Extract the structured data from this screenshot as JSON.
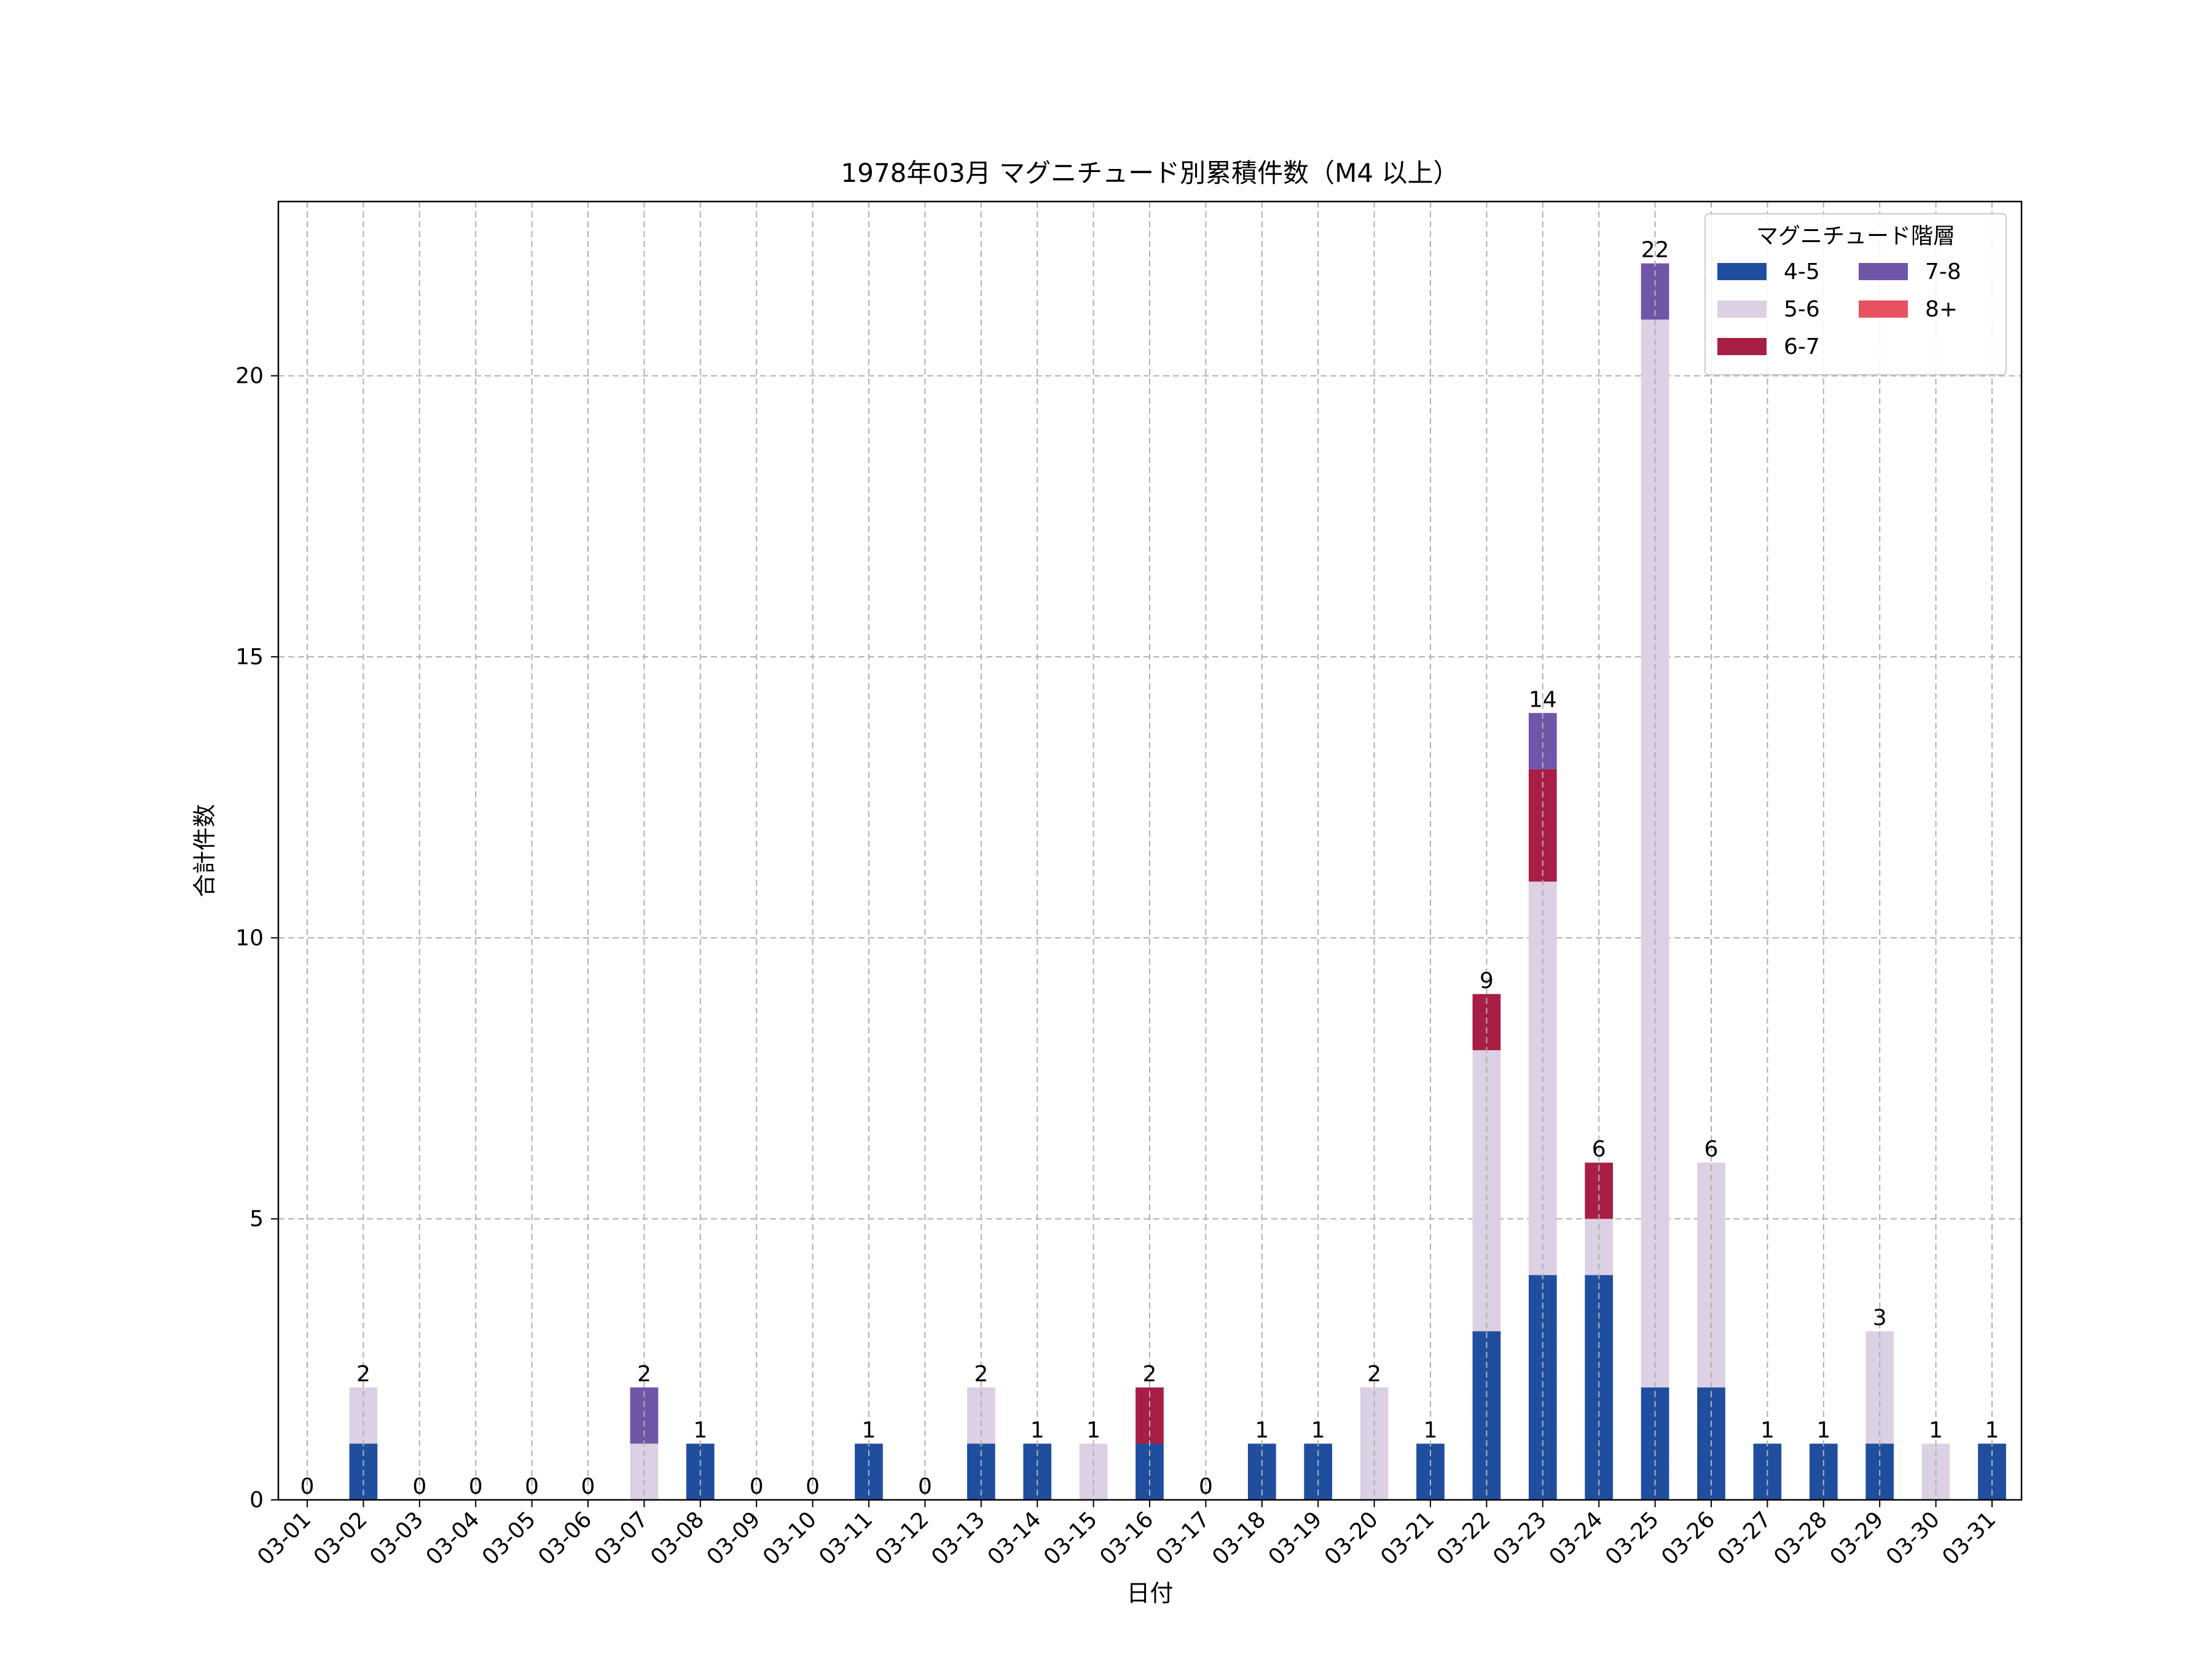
{
  "chart_data": {
    "type": "bar",
    "stacked": true,
    "title": "1978年03月 マグニチュード別累積件数（M4 以上）",
    "xlabel": "日付",
    "ylabel": "合計件数",
    "ylim": [
      0,
      23.1
    ],
    "yticks": [
      0,
      5,
      10,
      15,
      20
    ],
    "grid": true,
    "legend": {
      "title": "マグニチュード階層",
      "placement": "top-right",
      "columns": 2
    },
    "categories": [
      "03-01",
      "03-02",
      "03-03",
      "03-04",
      "03-05",
      "03-06",
      "03-07",
      "03-08",
      "03-09",
      "03-10",
      "03-11",
      "03-12",
      "03-13",
      "03-14",
      "03-15",
      "03-16",
      "03-17",
      "03-18",
      "03-19",
      "03-20",
      "03-21",
      "03-22",
      "03-23",
      "03-24",
      "03-25",
      "03-26",
      "03-27",
      "03-28",
      "03-29",
      "03-30",
      "03-31"
    ],
    "series": [
      {
        "name": "4-5",
        "color": "#1f4e9f",
        "values": [
          0,
          1,
          0,
          0,
          0,
          0,
          0,
          1,
          0,
          0,
          1,
          0,
          1,
          1,
          0,
          1,
          0,
          1,
          1,
          0,
          1,
          3,
          4,
          4,
          2,
          2,
          1,
          1,
          1,
          0,
          1
        ]
      },
      {
        "name": "5-6",
        "color": "#dcd0e4",
        "values": [
          0,
          1,
          0,
          0,
          0,
          0,
          1,
          0,
          0,
          0,
          0,
          0,
          1,
          0,
          1,
          0,
          0,
          0,
          0,
          2,
          0,
          5,
          7,
          1,
          19,
          4,
          0,
          0,
          2,
          1,
          0
        ]
      },
      {
        "name": "6-7",
        "color": "#a81e45",
        "values": [
          0,
          0,
          0,
          0,
          0,
          0,
          0,
          0,
          0,
          0,
          0,
          0,
          0,
          0,
          0,
          1,
          0,
          0,
          0,
          0,
          0,
          1,
          2,
          1,
          0,
          0,
          0,
          0,
          0,
          0,
          0
        ]
      },
      {
        "name": "7-8",
        "color": "#7055a8",
        "values": [
          0,
          0,
          0,
          0,
          0,
          0,
          1,
          0,
          0,
          0,
          0,
          0,
          0,
          0,
          0,
          0,
          0,
          0,
          0,
          0,
          0,
          0,
          1,
          0,
          1,
          0,
          0,
          0,
          0,
          0,
          0
        ]
      },
      {
        "name": "8+",
        "color": "#e8515f",
        "values": [
          0,
          0,
          0,
          0,
          0,
          0,
          0,
          0,
          0,
          0,
          0,
          0,
          0,
          0,
          0,
          0,
          0,
          0,
          0,
          0,
          0,
          0,
          0,
          0,
          0,
          0,
          0,
          0,
          0,
          0,
          0
        ]
      }
    ],
    "totals": [
      0,
      2,
      0,
      0,
      0,
      0,
      2,
      1,
      0,
      0,
      1,
      0,
      2,
      1,
      1,
      2,
      0,
      1,
      1,
      2,
      1,
      9,
      14,
      6,
      22,
      6,
      1,
      1,
      3,
      1,
      1
    ]
  }
}
